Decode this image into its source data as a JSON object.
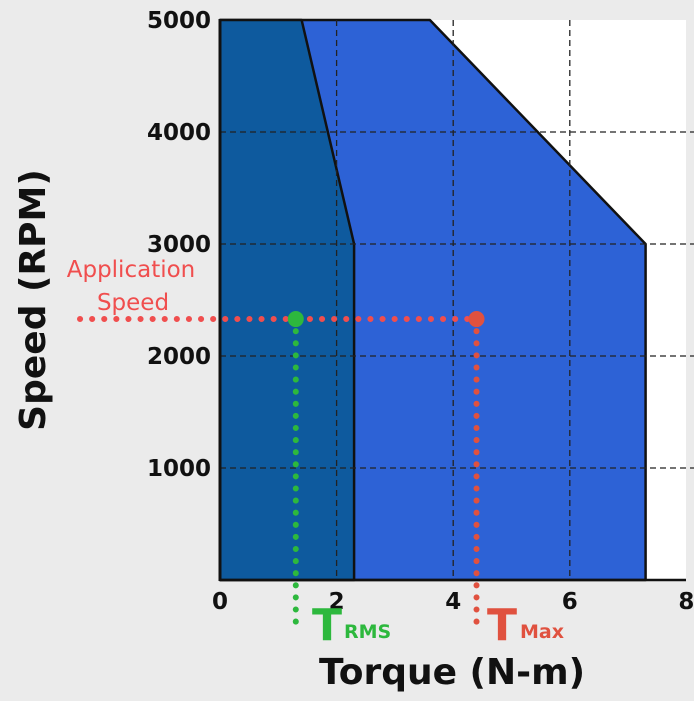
{
  "chart_data": {
    "type": "area",
    "xlabel": "Torque (N-m)",
    "ylabel": "Speed (RPM)",
    "xlim": [
      0,
      8
    ],
    "ylim": [
      0,
      5000
    ],
    "xticks": [
      "0",
      "2",
      "4",
      "6",
      "8"
    ],
    "yticks": [
      "1000",
      "2000",
      "3000",
      "4000",
      "5000"
    ],
    "grid": true,
    "series": [
      {
        "name": "",
        "color": "#2d62d6",
        "points": [
          [
            0,
            0
          ],
          [
            0,
            5000
          ],
          [
            3.6,
            5000
          ],
          [
            7.3,
            3000
          ],
          [
            7.3,
            0
          ]
        ]
      },
      {
        "name": "",
        "color": "#0e5a9e",
        "points": [
          [
            0,
            0
          ],
          [
            0,
            5000
          ],
          [
            1.4,
            5000
          ],
          [
            2.3,
            3000
          ],
          [
            2.3,
            0
          ]
        ]
      }
    ],
    "annotations": {
      "application_speed": {
        "label_line1": "Application",
        "label_line2": "Speed",
        "value": 2330,
        "color": "#f04e4e"
      },
      "t_rms": {
        "main": "T",
        "sub": "RMS",
        "x": 1.3,
        "color": "#2db83d"
      },
      "t_max": {
        "main": "T",
        "sub": "Max",
        "x": 4.4,
        "color": "#e0513f"
      }
    }
  }
}
